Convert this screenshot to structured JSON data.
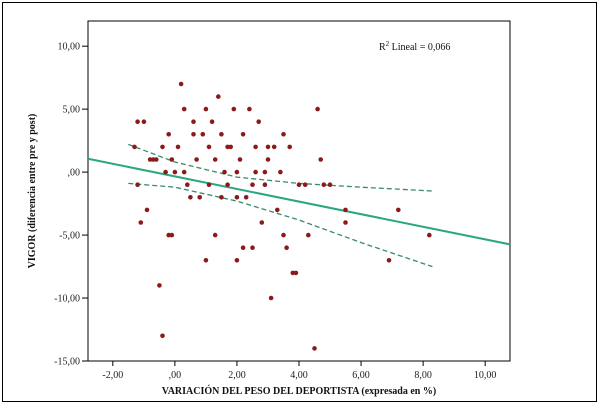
{
  "chart_data": {
    "type": "scatter",
    "xlabel": "VARIACIÓN DEL PESO DEL DEPORTISTA (expresada en %)",
    "ylabel": "VIGOR (diferencia entre pre y post)",
    "xlim": [
      -2.8,
      10.8
    ],
    "ylim": [
      -15,
      12
    ],
    "x_ticks": [
      -2,
      0,
      2,
      4,
      6,
      8,
      10
    ],
    "x_tick_labels": [
      "-2,00",
      ",00",
      "2,00",
      "4,00",
      "6,00",
      "8,00",
      "10,00"
    ],
    "y_ticks": [
      10,
      5,
      0,
      -5,
      -10,
      -15
    ],
    "y_tick_labels": [
      "10,00",
      "5,00",
      ",00",
      "-5,00",
      "-10,00",
      "-15,00"
    ],
    "annotation": {
      "prefix": "R",
      "sup": "2",
      "text": " Lineal = 0,066"
    },
    "colors": {
      "points": "#8b1a1a",
      "fit_line": "#2aa87a",
      "ci": "#3a8a6a"
    },
    "points": [
      [
        -1.3,
        2
      ],
      [
        -1.2,
        4
      ],
      [
        -1.0,
        4
      ],
      [
        -1.2,
        -1
      ],
      [
        -1.1,
        -4
      ],
      [
        -0.9,
        -3
      ],
      [
        -0.8,
        1
      ],
      [
        -0.7,
        1
      ],
      [
        -0.6,
        1
      ],
      [
        -0.5,
        -9
      ],
      [
        -0.4,
        2
      ],
      [
        -0.3,
        0
      ],
      [
        -0.2,
        -5
      ],
      [
        -0.1,
        -5
      ],
      [
        -0.2,
        3
      ],
      [
        -0.1,
        1
      ],
      [
        0.0,
        0
      ],
      [
        0.1,
        2
      ],
      [
        0.2,
        7
      ],
      [
        0.3,
        0
      ],
      [
        0.4,
        -1
      ],
      [
        0.5,
        -2
      ],
      [
        0.6,
        4
      ],
      [
        0.7,
        1
      ],
      [
        0.8,
        -2
      ],
      [
        0.9,
        3
      ],
      [
        1.0,
        5
      ],
      [
        1.0,
        -7
      ],
      [
        1.1,
        2
      ],
      [
        1.1,
        -1
      ],
      [
        1.2,
        4
      ],
      [
        1.3,
        -5
      ],
      [
        1.3,
        1
      ],
      [
        1.4,
        6
      ],
      [
        1.5,
        3
      ],
      [
        1.5,
        -2
      ],
      [
        1.6,
        0
      ],
      [
        1.7,
        -1
      ],
      [
        1.8,
        2
      ],
      [
        1.9,
        5
      ],
      [
        2.0,
        -7
      ],
      [
        2.0,
        0
      ],
      [
        2.1,
        1
      ],
      [
        2.2,
        3
      ],
      [
        2.3,
        -2
      ],
      [
        2.4,
        5
      ],
      [
        2.5,
        -6
      ],
      [
        2.5,
        -1
      ],
      [
        2.6,
        0
      ],
      [
        2.6,
        2
      ],
      [
        2.7,
        4
      ],
      [
        2.8,
        -4
      ],
      [
        2.9,
        -1
      ],
      [
        3.0,
        1
      ],
      [
        3.1,
        -10
      ],
      [
        3.2,
        2
      ],
      [
        3.3,
        -3
      ],
      [
        3.4,
        0
      ],
      [
        3.5,
        3
      ],
      [
        3.5,
        -5
      ],
      [
        3.6,
        -6
      ],
      [
        3.7,
        2
      ],
      [
        3.8,
        -8
      ],
      [
        3.9,
        -8
      ],
      [
        4.0,
        -1
      ],
      [
        4.2,
        -1
      ],
      [
        4.3,
        -5
      ],
      [
        4.5,
        -14
      ],
      [
        4.6,
        5
      ],
      [
        4.7,
        1
      ],
      [
        4.8,
        -1
      ],
      [
        5.0,
        -1
      ],
      [
        2.9,
        0
      ],
      [
        3.0,
        2
      ],
      [
        -0.4,
        -13
      ],
      [
        5.5,
        -3
      ],
      [
        5.5,
        -4
      ],
      [
        6.9,
        -7
      ],
      [
        7.2,
        -3
      ],
      [
        8.2,
        -5
      ],
      [
        0.3,
        5
      ],
      [
        0.6,
        3
      ],
      [
        1.7,
        2
      ],
      [
        2.0,
        -2
      ],
      [
        2.2,
        -6
      ]
    ],
    "fit": {
      "intercept": -0.34,
      "slope": -0.5
    },
    "ci_upper": [
      [
        -1.5,
        2.2
      ],
      [
        0.0,
        0.8
      ],
      [
        2.0,
        -0.4
      ],
      [
        4.0,
        -0.9
      ],
      [
        6.0,
        -1.2
      ],
      [
        8.3,
        -1.5
      ]
    ],
    "ci_lower": [
      [
        -1.5,
        -0.9
      ],
      [
        0.0,
        -1.2
      ],
      [
        2.0,
        -2.3
      ],
      [
        4.0,
        -3.8
      ],
      [
        6.0,
        -5.6
      ],
      [
        8.3,
        -7.5
      ]
    ]
  }
}
